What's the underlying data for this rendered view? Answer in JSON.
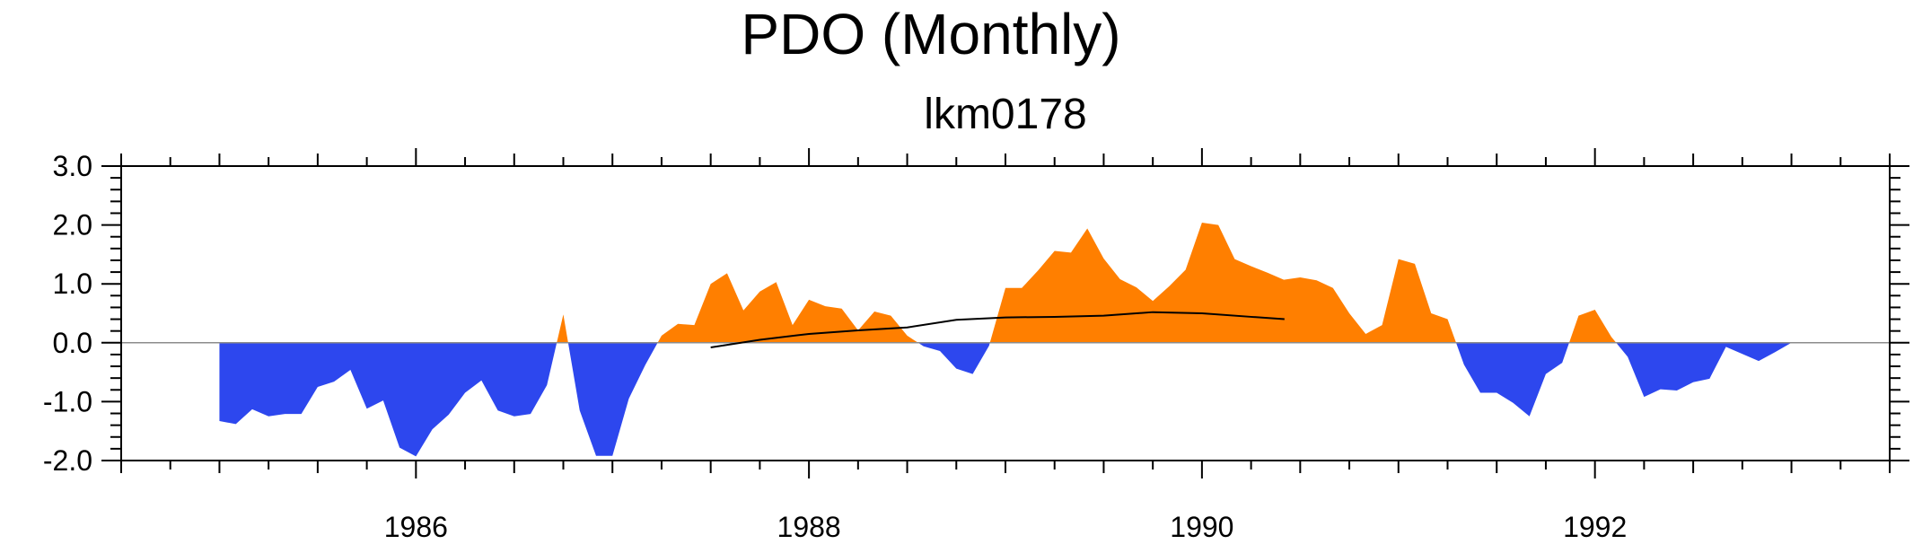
{
  "chart_data": {
    "type": "area",
    "title": "PDO (Monthly)",
    "subtitle": "lkm0178",
    "xlim": [
      1984.5,
      1993.5
    ],
    "ylim": [
      -2.0,
      3.0
    ],
    "x_ticks": [
      1986,
      1988,
      1990,
      1992
    ],
    "x_tick_labels": [
      "1986",
      "1988",
      "1990",
      "1992"
    ],
    "y_ticks": [
      3.0,
      2.0,
      1.0,
      0.0,
      -1.0,
      -2.0
    ],
    "y_tick_labels": [
      "3.0",
      "2.0",
      "1.0",
      "0.0",
      "-1.0",
      "-2.0"
    ],
    "grid": false,
    "colors": {
      "positive": "#ff7f00",
      "negative": "#2d47ee",
      "line": "#000000",
      "axis": "#000000",
      "zero_line": "#8c8c8c"
    },
    "series": [
      {
        "type": "area",
        "start": 1985.0,
        "step": 0.0833333,
        "values": [
          -1.33,
          -1.38,
          -1.13,
          -1.25,
          -1.21,
          -1.21,
          -0.75,
          -0.66,
          -0.46,
          -1.12,
          -0.98,
          -1.78,
          -1.93,
          -1.47,
          -1.22,
          -0.85,
          -0.64,
          -1.15,
          -1.25,
          -1.21,
          -0.72,
          0.48,
          -1.15,
          -1.92,
          -1.92,
          -0.95,
          -0.38,
          0.12,
          0.32,
          0.3,
          1.0,
          1.18,
          0.55,
          0.87,
          1.03,
          0.3,
          0.73,
          0.62,
          0.58,
          0.21,
          0.53,
          0.46,
          0.12,
          -0.06,
          -0.14,
          -0.44,
          -0.53,
          -0.05,
          0.93,
          0.93,
          1.23,
          1.56,
          1.53,
          1.94,
          1.43,
          1.08,
          0.94,
          0.71,
          0.96,
          1.24,
          2.04,
          2.0,
          1.42,
          1.3,
          1.19,
          1.07,
          1.11,
          1.06,
          0.93,
          0.5,
          0.15,
          0.3,
          1.42,
          1.34,
          0.5,
          0.4,
          -0.37,
          -0.85,
          -0.85,
          -1.02,
          -1.25,
          -0.53,
          -0.34,
          0.46,
          0.56,
          0.1,
          -0.24,
          -0.92,
          -0.79,
          -0.81,
          -0.67,
          -0.61,
          -0.07,
          -0.19,
          -0.31,
          -0.16,
          0.0
        ]
      },
      {
        "type": "line",
        "x": [
          1987.5,
          1987.75,
          1988.0,
          1988.25,
          1988.5,
          1988.75,
          1989.0,
          1989.25,
          1989.5,
          1989.75,
          1990.0,
          1990.25,
          1990.42
        ],
        "values": [
          -0.08,
          0.05,
          0.15,
          0.21,
          0.26,
          0.39,
          0.43,
          0.44,
          0.46,
          0.52,
          0.5,
          0.44,
          0.4
        ]
      }
    ]
  }
}
